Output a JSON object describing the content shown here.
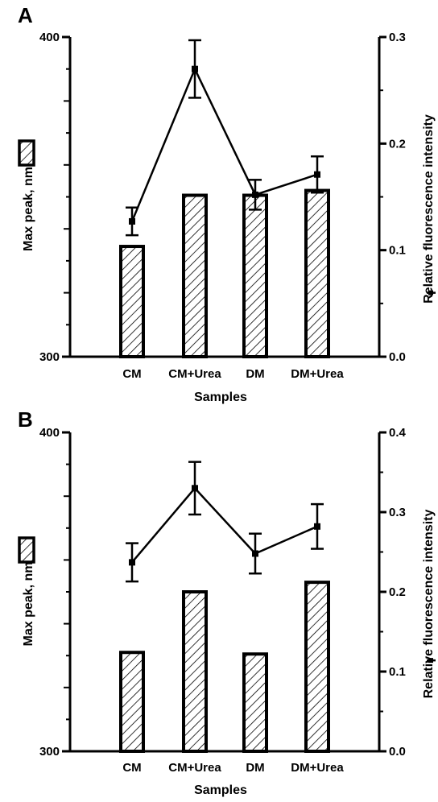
{
  "chart_data": [
    {
      "panel_label": "A",
      "type": "bar+line",
      "xlabel": "Samples",
      "ylabel_left": "Max peak, nm",
      "ylabel_right": "Relative fluorescence intensity",
      "categories": [
        "CM",
        "CM+Urea",
        "DM",
        "DM+Urea"
      ],
      "left_axis": {
        "ylim": [
          300,
          400
        ],
        "tick_labels": [
          "300",
          "400"
        ],
        "tick_values": [
          300,
          400
        ],
        "minor_step": 10
      },
      "right_axis": {
        "ylim": [
          0,
          0.3
        ],
        "tick_labels": [
          "0.0",
          "0.1",
          "0.2",
          "0.3"
        ],
        "tick_values": [
          0,
          0.1,
          0.2,
          0.3
        ]
      },
      "bars": {
        "values": [
          334.5,
          350.5,
          350.5,
          352.0
        ],
        "pattern": "hatched"
      },
      "line": {
        "values": [
          0.127,
          0.27,
          0.152,
          0.171
        ],
        "errors": [
          0.013,
          0.027,
          0.014,
          0.017
        ],
        "marker": "square"
      },
      "legend": "left-middle"
    },
    {
      "panel_label": "B",
      "type": "bar+line",
      "xlabel": "Samples",
      "ylabel_left": "Max peak, nm",
      "ylabel_right": "Relative fluorescence intensity",
      "categories": [
        "CM",
        "CM+Urea",
        "DM",
        "DM+Urea"
      ],
      "left_axis": {
        "ylim": [
          300,
          400
        ],
        "tick_labels": [
          "300",
          "400"
        ],
        "tick_values": [
          300,
          400
        ],
        "minor_step": 10
      },
      "right_axis": {
        "ylim": [
          0,
          0.4
        ],
        "tick_labels": [
          "0.0",
          "0.1",
          "0.2",
          "0.3",
          "0.4"
        ],
        "tick_values": [
          0,
          0.1,
          0.2,
          0.3,
          0.4
        ]
      },
      "bars": {
        "values": [
          331.0,
          350.0,
          330.5,
          353.0
        ],
        "pattern": "hatched"
      },
      "line": {
        "values": [
          0.237,
          0.33,
          0.248,
          0.282
        ],
        "errors": [
          0.024,
          0.033,
          0.025,
          0.028
        ],
        "marker": "square"
      },
      "legend": "left-middle"
    }
  ]
}
